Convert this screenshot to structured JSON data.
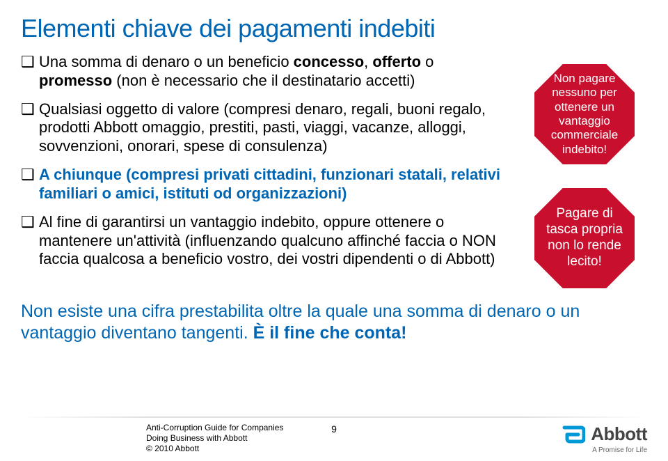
{
  "title": "Elementi chiave dei pagamenti indebiti",
  "bullets": [
    {
      "segments": [
        {
          "t": "Una somma di denaro o un beneficio ",
          "cls": ""
        },
        {
          "t": "concesso",
          "cls": "bold"
        },
        {
          "t": ", ",
          "cls": ""
        },
        {
          "t": "offerto",
          "cls": "bold"
        },
        {
          "t": " o ",
          "cls": ""
        },
        {
          "t": "promesso",
          "cls": "bold"
        },
        {
          "t": " (non è necessario che il destinatario accetti)",
          "cls": ""
        }
      ]
    },
    {
      "segments": [
        {
          "t": "Qualsiasi oggetto di valore (compresi denaro, regali, buoni regalo, prodotti Abbott omaggio, prestiti, pasti, viaggi, vacanze, alloggi, sovvenzioni, onorari, spese di consulenza)",
          "cls": ""
        }
      ]
    },
    {
      "segments": [
        {
          "t": "A chiunque ",
          "cls": "blue-bold"
        },
        {
          "t": "(compresi privati cittadini, funzionari statali, relativi familiari o amici, istituti od organizzazioni)",
          "cls": "blue-bold"
        }
      ]
    },
    {
      "segments": [
        {
          "t": "Al fine di garantirsi un vantaggio indebito, oppure ottenere o mantenere un'attività (influenzando qualcuno affinché faccia o NON faccia qualcosa a beneficio vostro, dei vostri dipendenti o di Abbott)",
          "cls": ""
        }
      ]
    }
  ],
  "octagons": [
    {
      "text": "Non pagare nessuno per ottenere un vantaggio commerciale indebito!",
      "fill": "#c8102e",
      "stroke": "#ffffff",
      "fontsize": 17
    },
    {
      "text": "Pagare di tasca propria non lo rende lecito!",
      "fill": "#c8102e",
      "stroke": "#ffffff",
      "fontsize": 19
    }
  ],
  "bottom": {
    "plain": "Non esiste una cifra prestabilita oltre la quale una somma di denaro o un vantaggio diventano tangenti. ",
    "emph": "È il fine che conta!"
  },
  "footer": {
    "left_l1": "Anti-Corruption Guide for Companies",
    "left_l2": "Doing Business with Abbott",
    "left_l3": "© 2010 Abbott",
    "page": "9",
    "brand": "Abbott",
    "tagline": "A Promise for Life"
  },
  "colors": {
    "title": "#0066b3",
    "octagon_fill": "#c8102e",
    "logo_stroke": "#0099d8"
  }
}
